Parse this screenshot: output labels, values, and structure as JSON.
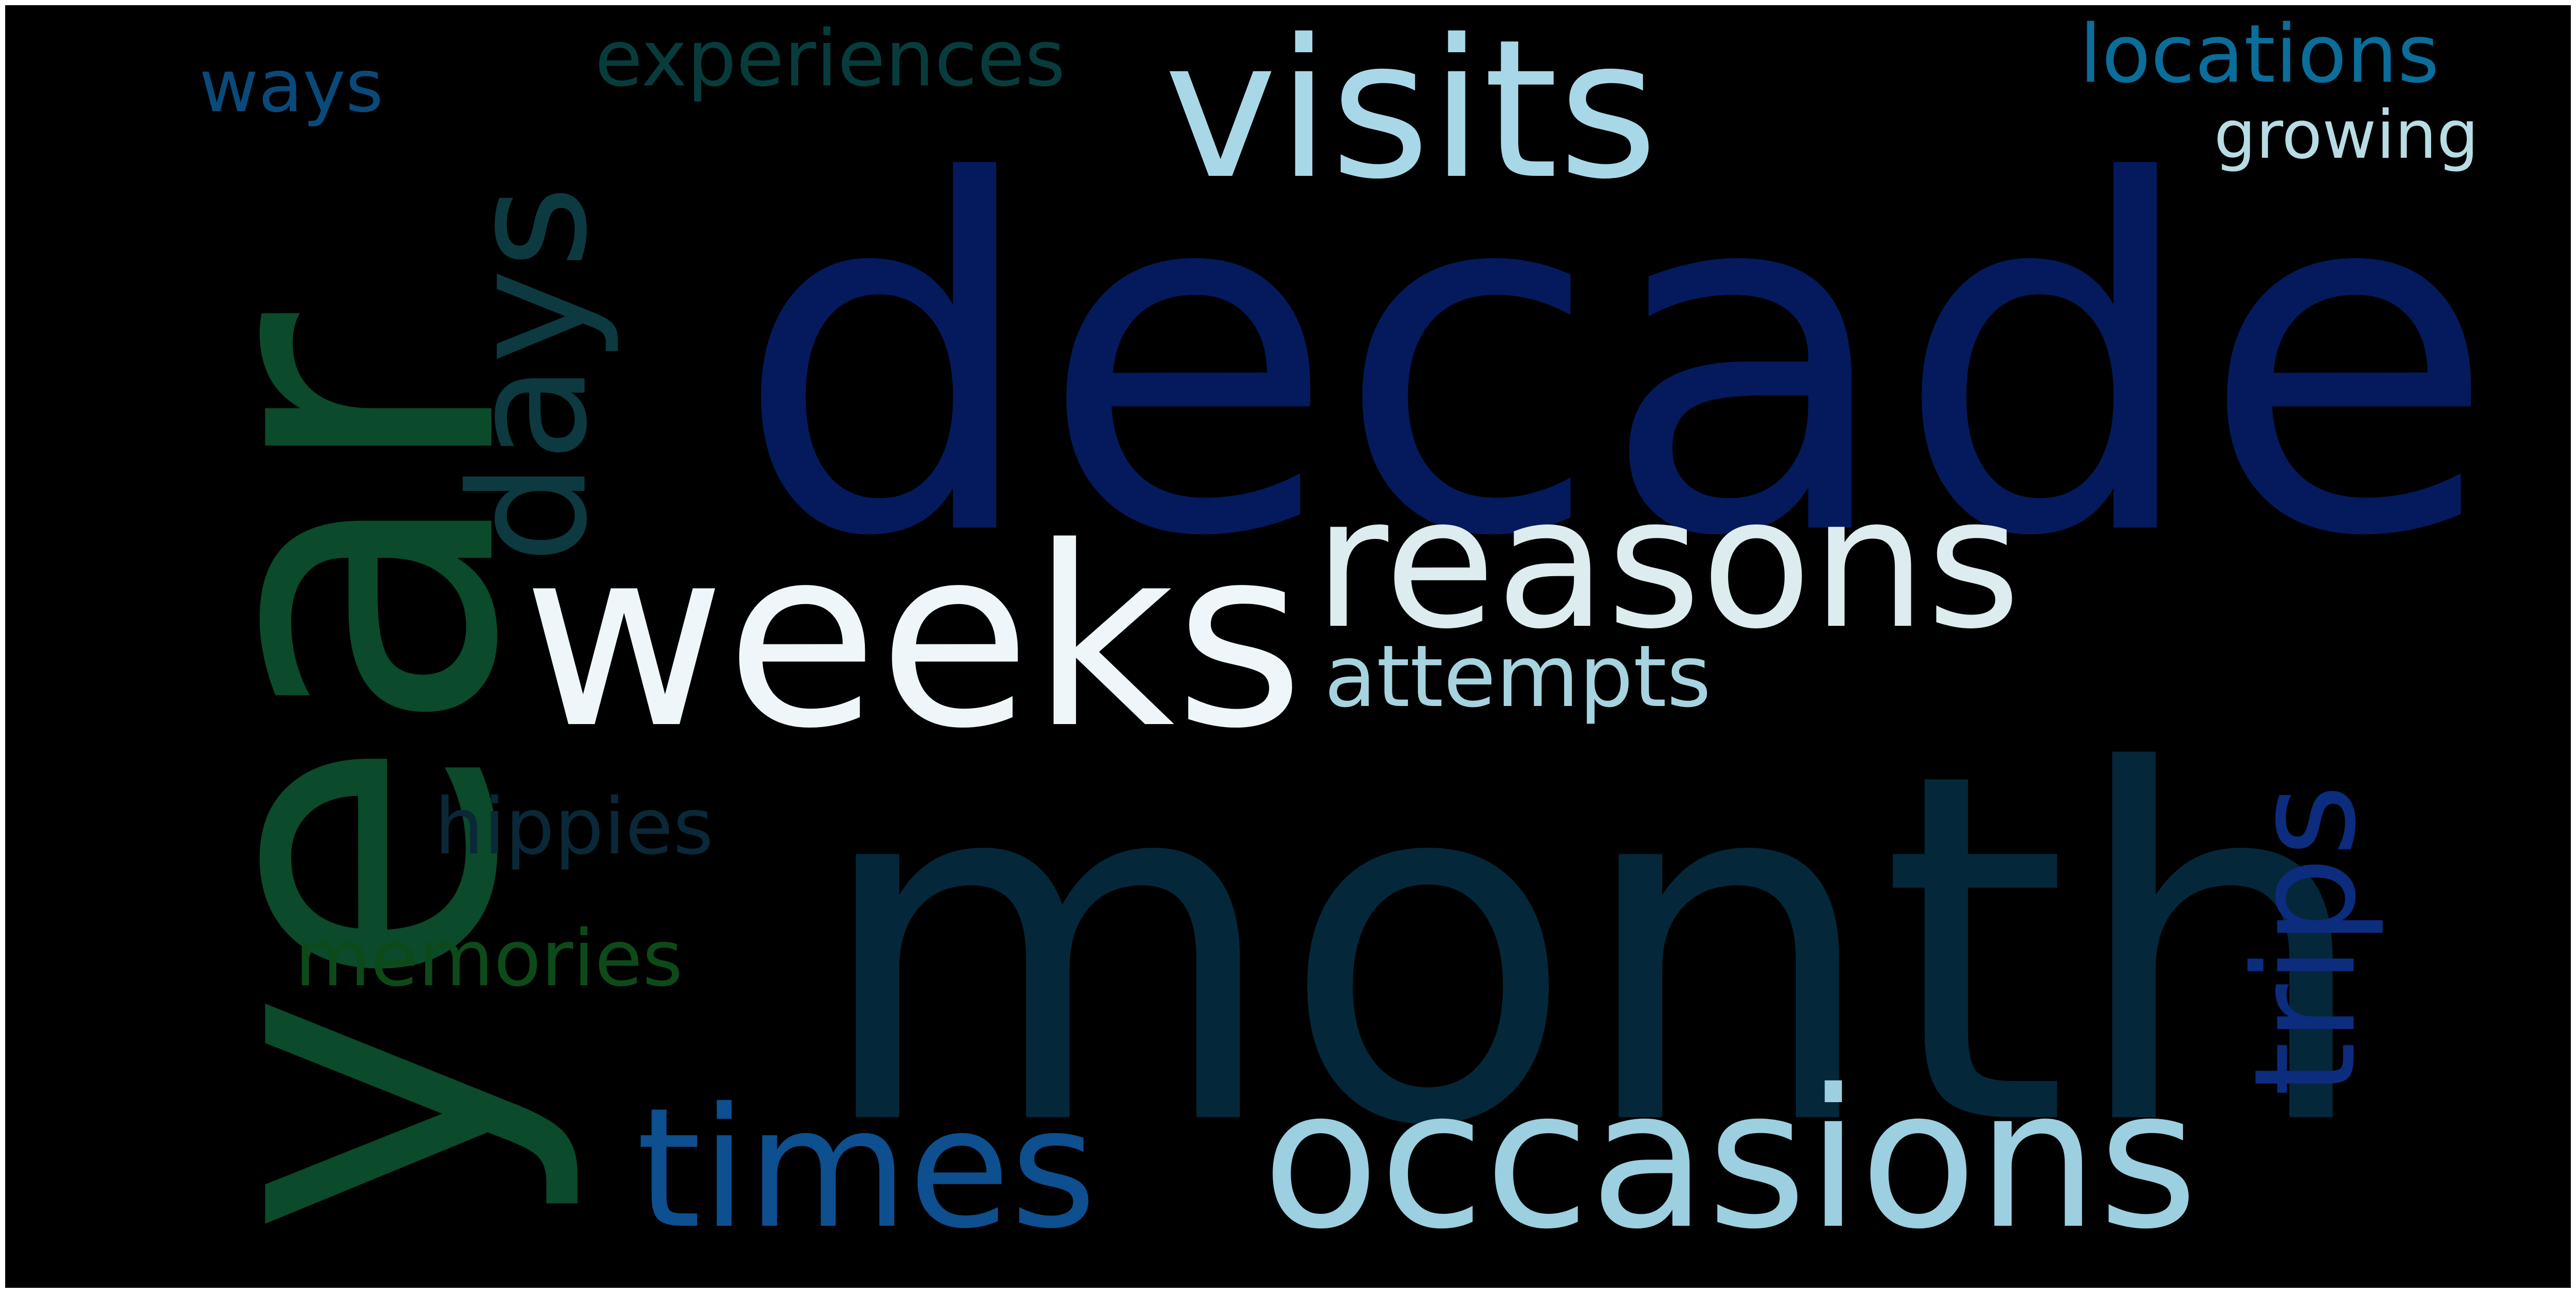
{
  "word_cloud": {
    "background": "#000000",
    "words": [
      {
        "text": "decade",
        "color": "#041a5c",
        "orientation": "horizontal"
      },
      {
        "text": "month",
        "color": "#04283a",
        "orientation": "horizontal"
      },
      {
        "text": "year",
        "color": "#0b4a2a",
        "orientation": "vertical"
      },
      {
        "text": "visits",
        "color": "#a8d8e8",
        "orientation": "horizontal"
      },
      {
        "text": "weeks",
        "color": "#eef6fa",
        "orientation": "horizontal"
      },
      {
        "text": "reasons",
        "color": "#dcecef",
        "orientation": "horizontal"
      },
      {
        "text": "occasions",
        "color": "#9ccfe0",
        "orientation": "horizontal"
      },
      {
        "text": "times",
        "color": "#0d4f8f",
        "orientation": "horizontal"
      },
      {
        "text": "days",
        "color": "#0c3a40",
        "orientation": "vertical"
      },
      {
        "text": "trips",
        "color": "#0c2c7e",
        "orientation": "vertical"
      },
      {
        "text": "attempts",
        "color": "#a6d3e0",
        "orientation": "horizontal"
      },
      {
        "text": "hippies",
        "color": "#0a2838",
        "orientation": "horizontal"
      },
      {
        "text": "memories",
        "color": "#0d4a1a",
        "orientation": "horizontal"
      },
      {
        "text": "experiences",
        "color": "#083c3c",
        "orientation": "horizontal"
      },
      {
        "text": "ways",
        "color": "#0a4a7a",
        "orientation": "horizontal"
      },
      {
        "text": "locations",
        "color": "#0a6d9a",
        "orientation": "horizontal"
      },
      {
        "text": "growing",
        "color": "#b8dce4",
        "orientation": "horizontal"
      }
    ]
  }
}
